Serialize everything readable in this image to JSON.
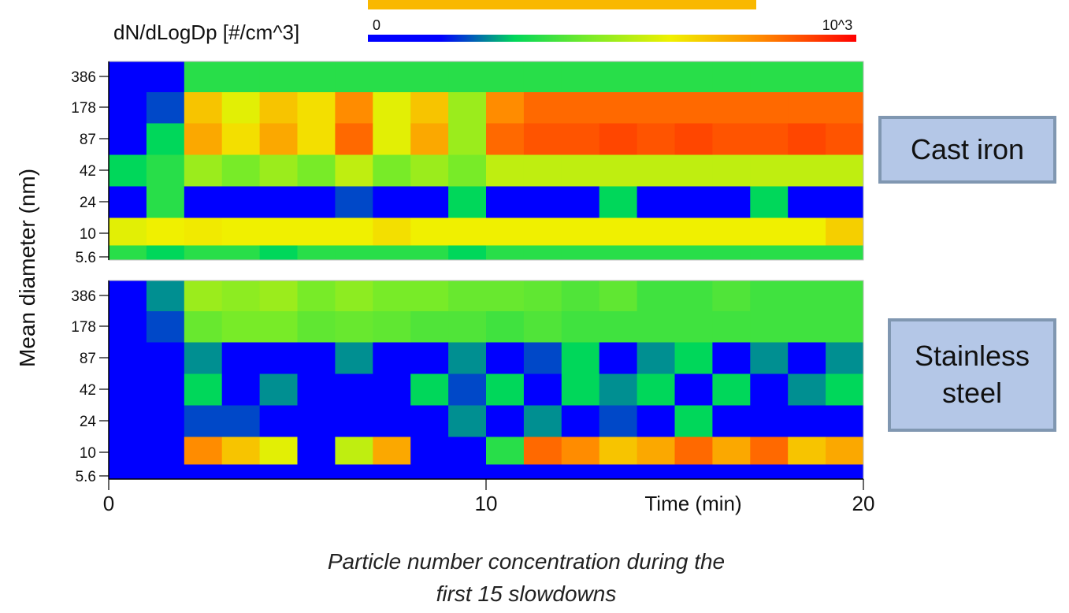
{
  "chart_data": {
    "type": "heatmap",
    "colorbar_label": "dN/dLogDp [#/cm^3]",
    "colorbar_ticks": [
      {
        "value": 0,
        "label": "0"
      },
      {
        "value": 1000,
        "label": "10^3"
      }
    ],
    "y_label": "Mean diameter (nm)",
    "x_label": "Time (min)",
    "y_categories": [
      "5.6",
      "10",
      "24",
      "42",
      "87",
      "178",
      "386"
    ],
    "xlim": [
      0,
      20
    ],
    "xticks": [
      0,
      10,
      20
    ],
    "xbins": [
      0,
      1,
      2,
      3,
      4,
      5,
      6,
      7,
      8,
      9,
      10,
      11,
      12,
      13,
      14,
      15,
      16,
      17,
      18,
      19,
      20
    ],
    "panels": [
      {
        "label": "Cast iron",
        "values": [
          [
            350,
            300,
            350,
            350,
            300,
            350,
            350,
            350,
            350,
            300,
            350,
            350,
            350,
            350,
            350,
            350,
            350,
            350,
            350,
            350
          ],
          [
            600,
            620,
            630,
            620,
            620,
            620,
            620,
            650,
            620,
            620,
            620,
            620,
            620,
            620,
            620,
            620,
            620,
            620,
            620,
            680
          ],
          [
            100,
            350,
            150,
            100,
            150,
            100,
            200,
            100,
            150,
            300,
            150,
            100,
            150,
            300,
            100,
            100,
            150,
            300,
            100,
            150
          ],
          [
            300,
            350,
            500,
            450,
            500,
            450,
            550,
            450,
            500,
            450,
            550,
            550,
            550,
            550,
            550,
            550,
            550,
            550,
            550,
            550
          ],
          [
            150,
            300,
            750,
            650,
            750,
            650,
            850,
            600,
            750,
            500,
            850,
            880,
            880,
            900,
            880,
            900,
            880,
            880,
            900,
            880
          ],
          [
            100,
            200,
            700,
            600,
            700,
            650,
            800,
            600,
            700,
            500,
            800,
            850,
            850,
            850,
            850,
            850,
            850,
            850,
            850,
            850
          ],
          [
            100,
            150,
            350,
            350,
            350,
            350,
            350,
            350,
            350,
            350,
            350,
            350,
            350,
            350,
            350,
            350,
            350,
            350,
            350,
            350
          ]
        ]
      },
      {
        "label": "Stainless steel",
        "values": [
          [
            100,
            100,
            150,
            100,
            100,
            100,
            100,
            100,
            100,
            100,
            100,
            100,
            100,
            100,
            100,
            100,
            100,
            100,
            100,
            100
          ],
          [
            100,
            100,
            800,
            700,
            600,
            100,
            550,
            750,
            100,
            100,
            350,
            850,
            800,
            700,
            750,
            850,
            750,
            850,
            700,
            750
          ],
          [
            100,
            100,
            200,
            200,
            100,
            100,
            100,
            100,
            100,
            250,
            100,
            250,
            100,
            200,
            100,
            300,
            100,
            100,
            100,
            100
          ],
          [
            100,
            100,
            300,
            100,
            250,
            100,
            100,
            100,
            300,
            200,
            300,
            100,
            300,
            250,
            300,
            100,
            300,
            100,
            250,
            300
          ],
          [
            100,
            100,
            250,
            150,
            100,
            100,
            250,
            150,
            100,
            250,
            100,
            200,
            300,
            100,
            250,
            300,
            100,
            250,
            100,
            250
          ],
          [
            100,
            200,
            430,
            450,
            450,
            420,
            430,
            420,
            400,
            400,
            380,
            400,
            380,
            380,
            380,
            380,
            380,
            380,
            380,
            380
          ],
          [
            100,
            250,
            500,
            480,
            500,
            450,
            480,
            450,
            450,
            430,
            430,
            420,
            400,
            420,
            380,
            380,
            400,
            380,
            380,
            380
          ]
        ]
      }
    ],
    "caption": "Particle number concentration during the first 15 slowdowns"
  }
}
